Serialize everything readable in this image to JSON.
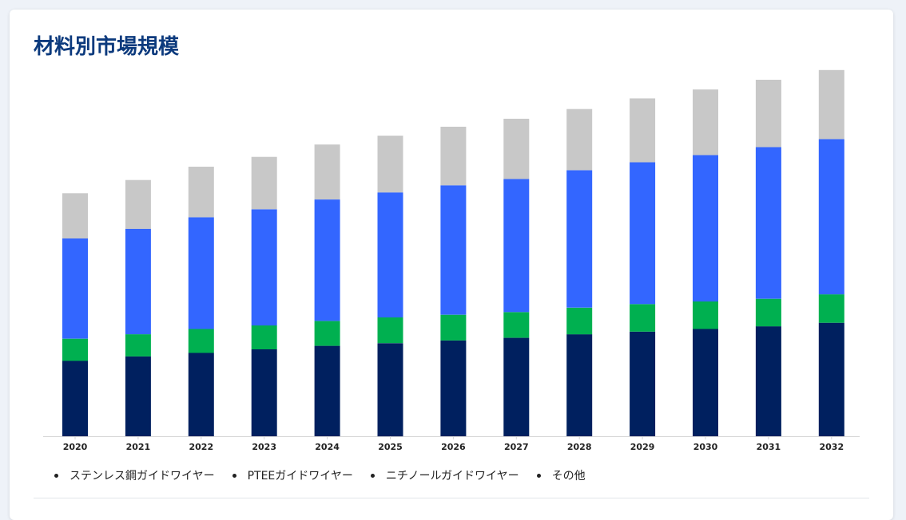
{
  "title": "材料別市場規模",
  "legend": [
    {
      "label": "ステンレス鋼ガイドワイヤー"
    },
    {
      "label": "PTEEガイドワイヤー"
    },
    {
      "label": "ニチノールガイドワイヤー"
    },
    {
      "label": "その他"
    }
  ],
  "colors": [
    "#00205f",
    "#00b050",
    "#3366ff",
    "#c8c8c8"
  ],
  "chart_data": {
    "type": "bar",
    "stacked": true,
    "title": "材料別市場規模",
    "categories": [
      "2020",
      "2021",
      "2022",
      "2023",
      "2024",
      "2025",
      "2026",
      "2027",
      "2028",
      "2029",
      "2030",
      "2031",
      "2032"
    ],
    "series": [
      {
        "name": "ステンレス鋼ガイドワイヤー",
        "values": [
          85,
          90,
          94,
          98,
          102,
          105,
          108,
          111,
          115,
          118,
          121,
          124,
          128
        ]
      },
      {
        "name": "PTEEガイドワイヤー",
        "values": [
          25,
          25,
          27,
          27,
          28,
          29,
          29,
          29,
          30,
          31,
          31,
          31,
          32
        ]
      },
      {
        "name": "ニチノールガイドワイヤー",
        "values": [
          113,
          119,
          126,
          131,
          137,
          141,
          146,
          150,
          155,
          160,
          165,
          171,
          175
        ]
      },
      {
        "name": "その他",
        "values": [
          51,
          55,
          57,
          59,
          62,
          64,
          66,
          68,
          69,
          72,
          74,
          76,
          78
        ]
      }
    ],
    "ylim": [
      0,
      420
    ],
    "grid": false,
    "legend_position": "bottom-left"
  }
}
